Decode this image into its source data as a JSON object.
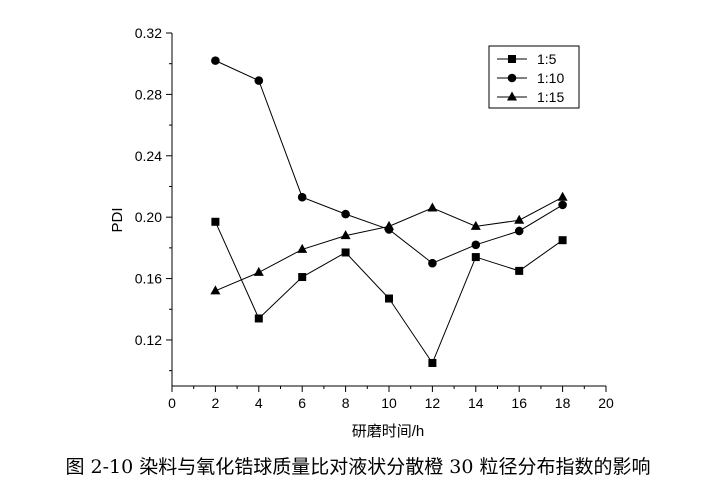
{
  "chart_data": {
    "type": "line",
    "xlabel": "研磨时间/h",
    "ylabel": "PDI",
    "xlim": [
      0,
      20
    ],
    "ylim": [
      0.09,
      0.32
    ],
    "xticks": [
      0,
      2,
      4,
      6,
      8,
      10,
      12,
      14,
      16,
      18,
      20
    ],
    "yticks": [
      0.12,
      0.16,
      0.2,
      0.24,
      0.28,
      0.32
    ],
    "ytick_labels": [
      "0.12",
      "0.16",
      "0.20",
      "0.24",
      "0.28",
      "0.32"
    ],
    "grid": false,
    "legend_position": "top-right",
    "x": [
      2,
      4,
      6,
      8,
      10,
      12,
      14,
      16,
      18
    ],
    "series": [
      {
        "name": "1:5",
        "marker": "square",
        "values": [
          0.197,
          0.134,
          0.161,
          0.177,
          0.147,
          0.105,
          0.174,
          0.165,
          0.185
        ]
      },
      {
        "name": "1:10",
        "marker": "circle",
        "values": [
          0.302,
          0.289,
          0.213,
          0.202,
          0.192,
          0.17,
          0.182,
          0.191,
          0.208
        ]
      },
      {
        "name": "1:15",
        "marker": "triangle",
        "values": [
          0.152,
          0.164,
          0.179,
          0.188,
          0.194,
          0.206,
          0.194,
          0.198,
          0.213
        ]
      }
    ]
  },
  "caption": "图 2-10 染料与氧化锆球质量比对液状分散橙 30 粒径分布指数的影响"
}
